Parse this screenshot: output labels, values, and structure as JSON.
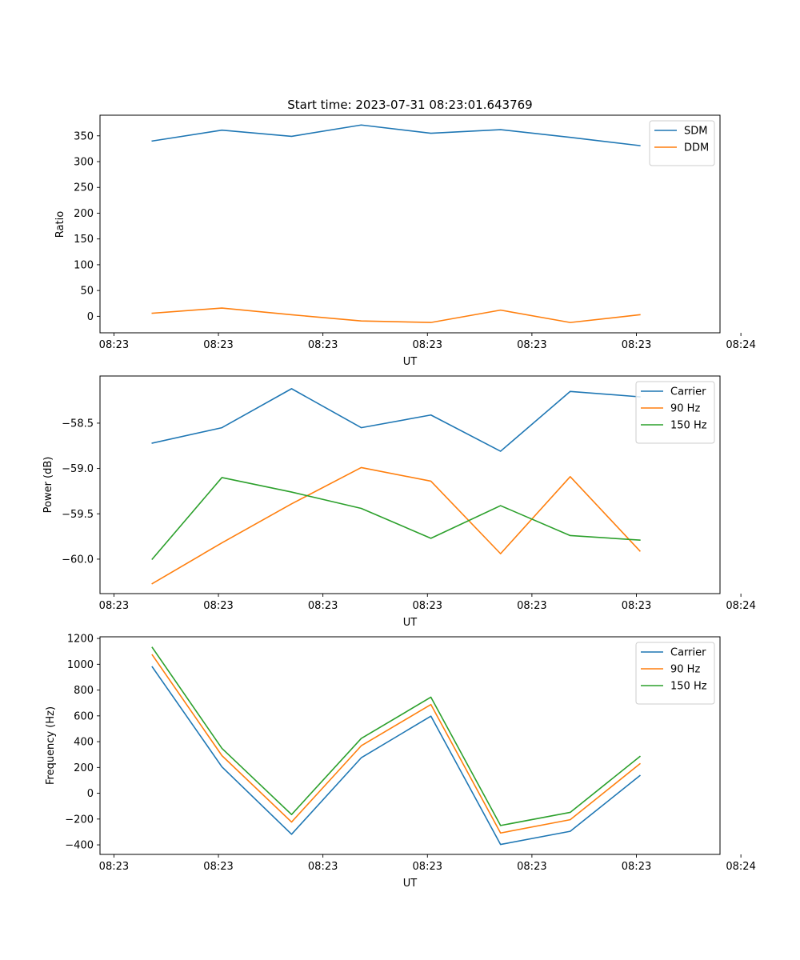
{
  "colors": {
    "blue": "#1f77b4",
    "orange": "#ff7f0e",
    "green": "#2ca02c"
  },
  "chart_data": [
    {
      "type": "line",
      "title": "Start time: 2023-07-31 08:23:01.643769",
      "xlabel": "UT",
      "ylabel": "Ratio",
      "x": [
        1,
        2,
        3,
        4,
        5,
        6,
        7,
        8
      ],
      "xlim": [
        0.25,
        9.15
      ],
      "xticks": [
        0.45,
        1.95,
        3.45,
        4.95,
        6.45,
        7.95,
        9.45
      ],
      "xtick_labels": [
        "08:23",
        "08:23",
        "08:23",
        "08:23",
        "08:23",
        "08:23",
        "08:24"
      ],
      "ylim": [
        -32,
        390
      ],
      "yticks": [
        0,
        50,
        100,
        150,
        200,
        250,
        300,
        350
      ],
      "ytick_labels": [
        "0",
        "50",
        "100",
        "150",
        "200",
        "250",
        "300",
        "350"
      ],
      "legend": "top-right",
      "series": [
        {
          "name": "SDM",
          "color": "blue",
          "values": [
            340,
            361,
            349,
            371,
            355,
            362,
            347,
            331
          ]
        },
        {
          "name": "DDM",
          "color": "orange",
          "values": [
            6,
            16,
            3,
            -9,
            -12,
            12,
            -12,
            3
          ]
        }
      ]
    },
    {
      "type": "line",
      "title": "",
      "xlabel": "UT",
      "ylabel": "Power (dB)",
      "x": [
        1,
        2,
        3,
        4,
        5,
        6,
        7,
        8
      ],
      "xlim": [
        0.25,
        9.15
      ],
      "xticks": [
        0.45,
        1.95,
        3.45,
        4.95,
        6.45,
        7.95,
        9.45
      ],
      "xtick_labels": [
        "08:23",
        "08:23",
        "08:23",
        "08:23",
        "08:23",
        "08:23",
        "08:24"
      ],
      "ylim": [
        -60.38,
        -57.98
      ],
      "yticks": [
        -60.0,
        -59.5,
        -59.0,
        -58.5
      ],
      "ytick_labels": [
        "−60.0",
        "−59.5",
        "−59.0",
        "−58.5"
      ],
      "legend": "top-right",
      "series": [
        {
          "name": "Carrier",
          "color": "blue",
          "values": [
            -58.72,
            -58.55,
            -58.12,
            -58.55,
            -58.41,
            -58.81,
            -58.15,
            -58.21
          ]
        },
        {
          "name": "90 Hz",
          "color": "orange",
          "values": [
            -60.27,
            -59.82,
            -59.39,
            -58.99,
            -59.14,
            -59.94,
            -59.09,
            -59.91
          ]
        },
        {
          "name": "150 Hz",
          "color": "green",
          "values": [
            -60.0,
            -59.1,
            -59.26,
            -59.44,
            -59.77,
            -59.41,
            -59.74,
            -59.79
          ]
        }
      ]
    },
    {
      "type": "line",
      "title": "",
      "xlabel": "UT",
      "ylabel": "Frequency (Hz)",
      "x": [
        1,
        2,
        3,
        4,
        5,
        6,
        7,
        8
      ],
      "xlim": [
        0.25,
        9.15
      ],
      "xticks": [
        0.45,
        1.95,
        3.45,
        4.95,
        6.45,
        7.95,
        9.45
      ],
      "xtick_labels": [
        "08:23",
        "08:23",
        "08:23",
        "08:23",
        "08:23",
        "08:23",
        "08:24"
      ],
      "ylim": [
        -474,
        1213
      ],
      "yticks": [
        -400,
        -200,
        0,
        200,
        400,
        600,
        800,
        1000,
        1200
      ],
      "ytick_labels": [
        "−400",
        "−200",
        "0",
        "200",
        "400",
        "600",
        "800",
        "1000",
        "1200"
      ],
      "legend": "top-right",
      "series": [
        {
          "name": "Carrier",
          "color": "blue",
          "values": [
            980,
            205,
            -318,
            275,
            598,
            -397,
            -295,
            137
          ]
        },
        {
          "name": "90 Hz",
          "color": "orange",
          "values": [
            1073,
            292,
            -223,
            368,
            688,
            -308,
            -205,
            228
          ]
        },
        {
          "name": "150 Hz",
          "color": "green",
          "values": [
            1130,
            348,
            -165,
            425,
            745,
            -250,
            -148,
            285
          ]
        }
      ]
    }
  ]
}
